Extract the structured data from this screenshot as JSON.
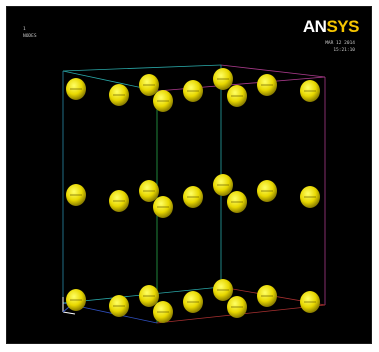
{
  "viewport": {
    "info_left": [
      "1",
      "STEP=1",
      "SUB =1",
      "TIME=1",
      "NODES"
    ],
    "info_right": [
      "MAR 12 2014",
      "15:21:10"
    ],
    "logo": {
      "an": "AN",
      "sys": "SYS"
    }
  },
  "colors": {
    "background": "#000000",
    "atom": "#f0e000",
    "edge_cyan": "#2aa8a8",
    "edge_green": "#2aa84a",
    "edge_magenta": "#a83a8a",
    "edge_red": "#a83030",
    "edge_blue": "#3050c0",
    "logo_sys": "#f6c500"
  },
  "lattice": {
    "atoms_per_layer": 9,
    "layers": 3
  }
}
